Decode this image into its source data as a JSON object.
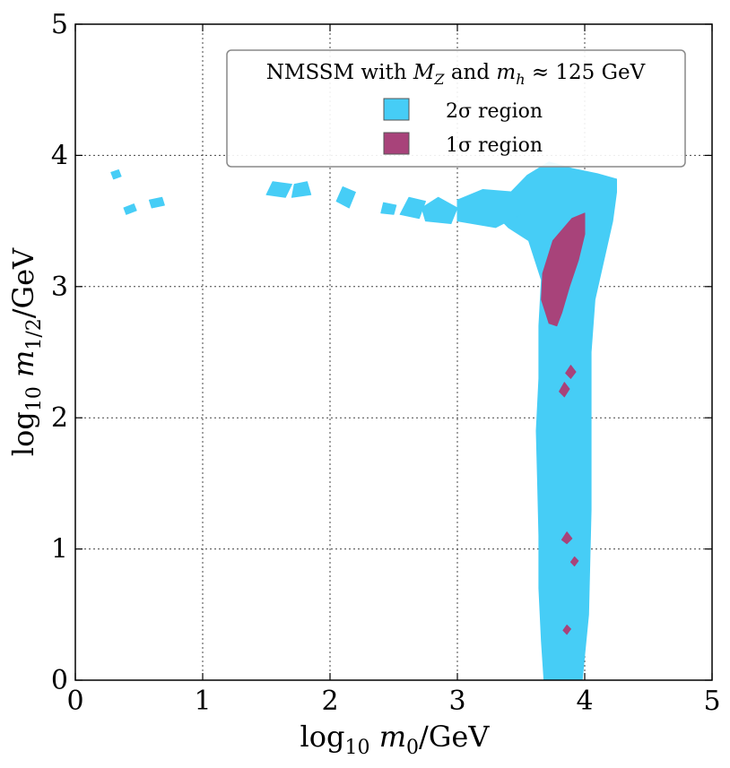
{
  "chart_data": {
    "type": "area",
    "title": "",
    "xlabel": "log10 m0/GeV",
    "ylabel": "log10 m1/2/GeV",
    "xlim": [
      0,
      5
    ],
    "ylim": [
      0,
      5
    ],
    "x_ticks": [
      "0",
      "1",
      "2",
      "3",
      "4",
      "5"
    ],
    "y_ticks": [
      "0",
      "1",
      "2",
      "3",
      "4",
      "5"
    ],
    "grid": true,
    "legend": {
      "placement": "top-right",
      "title": "NMSSM with MZ and mh ≈ 125 GeV",
      "entries": [
        {
          "label": "2σ region",
          "color": "#46cdf6"
        },
        {
          "label": "1σ region",
          "color": "#a8437a"
        }
      ]
    },
    "regions": [
      {
        "name": "2σ region",
        "color": "#46cdf6",
        "polygons": [
          [
            [
              3.68,
              0.0
            ],
            [
              3.66,
              0.3
            ],
            [
              3.64,
              0.7
            ],
            [
              3.64,
              1.1
            ],
            [
              3.63,
              1.5
            ],
            [
              3.62,
              1.9
            ],
            [
              3.64,
              2.3
            ],
            [
              3.64,
              2.7
            ],
            [
              3.66,
              3.05
            ],
            [
              3.56,
              3.35
            ],
            [
              3.4,
              3.45
            ],
            [
              3.3,
              3.55
            ],
            [
              3.4,
              3.7
            ],
            [
              3.55,
              3.85
            ],
            [
              3.72,
              3.95
            ],
            [
              3.9,
              3.9
            ],
            [
              4.1,
              3.86
            ],
            [
              4.25,
              3.82
            ],
            [
              4.25,
              3.72
            ],
            [
              4.22,
              3.5
            ],
            [
              4.15,
              3.2
            ],
            [
              4.08,
              2.9
            ],
            [
              4.05,
              2.5
            ],
            [
              4.05,
              2.1
            ],
            [
              4.05,
              1.7
            ],
            [
              4.05,
              1.3
            ],
            [
              4.04,
              0.9
            ],
            [
              4.03,
              0.5
            ],
            [
              4.0,
              0.2
            ],
            [
              3.98,
              0.0
            ]
          ],
          [
            [
              3.0,
              3.5
            ],
            [
              3.3,
              3.45
            ],
            [
              3.5,
              3.55
            ],
            [
              3.45,
              3.72
            ],
            [
              3.2,
              3.74
            ],
            [
              3.0,
              3.66
            ]
          ],
          [
            [
              2.75,
              3.5
            ],
            [
              2.95,
              3.48
            ],
            [
              3.0,
              3.6
            ],
            [
              2.85,
              3.68
            ],
            [
              2.72,
              3.6
            ]
          ],
          [
            [
              2.55,
              3.55
            ],
            [
              2.7,
              3.52
            ],
            [
              2.75,
              3.65
            ],
            [
              2.62,
              3.68
            ]
          ],
          [
            [
              2.05,
              3.65
            ],
            [
              2.15,
              3.6
            ],
            [
              2.2,
              3.72
            ],
            [
              2.1,
              3.76
            ]
          ],
          [
            [
              1.5,
              3.7
            ],
            [
              1.65,
              3.68
            ],
            [
              1.7,
              3.78
            ],
            [
              1.55,
              3.8
            ]
          ],
          [
            [
              1.7,
              3.68
            ],
            [
              1.85,
              3.7
            ],
            [
              1.82,
              3.8
            ],
            [
              1.72,
              3.78
            ]
          ],
          [
            [
              2.4,
              3.56
            ],
            [
              2.5,
              3.55
            ],
            [
              2.52,
              3.62
            ],
            [
              2.42,
              3.64
            ]
          ],
          [
            [
              0.4,
              3.55
            ],
            [
              0.48,
              3.58
            ],
            [
              0.46,
              3.63
            ],
            [
              0.38,
              3.6
            ]
          ],
          [
            [
              0.6,
              3.6
            ],
            [
              0.7,
              3.62
            ],
            [
              0.68,
              3.68
            ],
            [
              0.58,
              3.66
            ]
          ],
          [
            [
              0.3,
              3.82
            ],
            [
              0.36,
              3.84
            ],
            [
              0.34,
              3.89
            ],
            [
              0.28,
              3.87
            ]
          ]
        ]
      },
      {
        "name": "1σ region",
        "color": "#a8437a",
        "polygons": [
          [
            [
              3.72,
              2.72
            ],
            [
              3.66,
              2.9
            ],
            [
              3.67,
              3.1
            ],
            [
              3.75,
              3.35
            ],
            [
              3.9,
              3.52
            ],
            [
              4.0,
              3.56
            ],
            [
              4.0,
              3.4
            ],
            [
              3.95,
              3.2
            ],
            [
              3.88,
              3.0
            ],
            [
              3.82,
              2.8
            ],
            [
              3.78,
              2.7
            ]
          ],
          [
            [
              3.85,
              2.34
            ],
            [
              3.89,
              2.4
            ],
            [
              3.93,
              2.35
            ],
            [
              3.89,
              2.3
            ]
          ],
          [
            [
              3.8,
              2.2
            ],
            [
              3.84,
              2.27
            ],
            [
              3.88,
              2.22
            ],
            [
              3.84,
              2.16
            ]
          ],
          [
            [
              3.82,
              1.07
            ],
            [
              3.86,
              1.13
            ],
            [
              3.9,
              1.08
            ],
            [
              3.86,
              1.04
            ]
          ],
          [
            [
              3.89,
              0.9
            ],
            [
              3.92,
              0.94
            ],
            [
              3.95,
              0.91
            ],
            [
              3.92,
              0.87
            ]
          ],
          [
            [
              3.83,
              0.38
            ],
            [
              3.86,
              0.42
            ],
            [
              3.89,
              0.39
            ],
            [
              3.86,
              0.35
            ]
          ]
        ]
      }
    ]
  }
}
